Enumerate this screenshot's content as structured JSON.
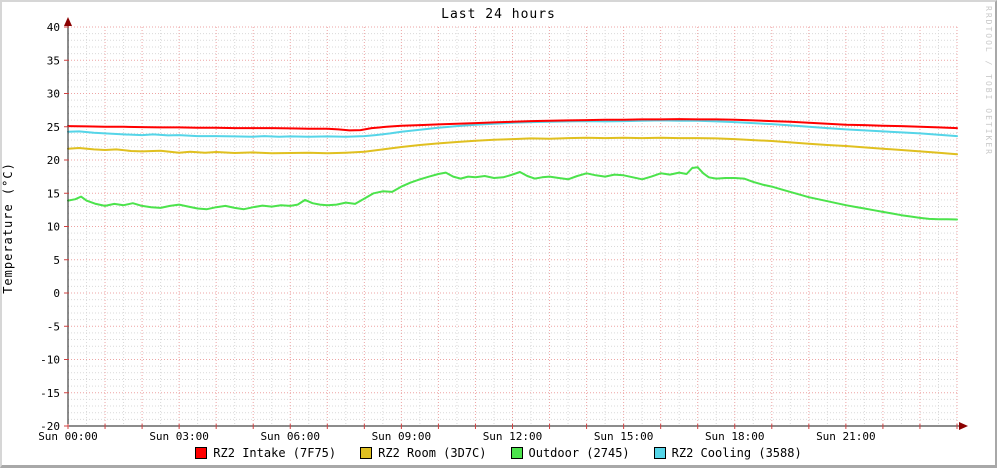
{
  "title": "Last 24 hours",
  "watermark": "RRDTOOL / TOBI OETIKER",
  "y_axis_label": "Temperature (°C)",
  "colors": {
    "grid_major": "#eda4a4",
    "grid_minor": "#d9d9d9",
    "axis": "#1a1a1a",
    "arrow": "#8b0000",
    "tick": "#d04040",
    "text": "#000000",
    "watermark": "#c9c9c9"
  },
  "chart_data": {
    "type": "line",
    "title": "Last 24 hours",
    "xlabel": "",
    "ylabel": "Temperature (°C)",
    "xlim_hours": [
      0,
      24
    ],
    "ylim": [
      -20,
      40
    ],
    "y_tick_step_major": 5,
    "y_tick_step_minor": 1,
    "x_tick_step_major_hours": 1,
    "x_tick_step_minor_hours": 0.5,
    "grid": "on",
    "legend_position": "bottom",
    "y_ticks": [
      -20,
      -15,
      -10,
      -5,
      0,
      5,
      10,
      15,
      20,
      25,
      30,
      35,
      40
    ],
    "x_ticks": [
      {
        "h": 0,
        "label": "Sun 00:00"
      },
      {
        "h": 3,
        "label": "Sun 03:00"
      },
      {
        "h": 6,
        "label": "Sun 06:00"
      },
      {
        "h": 9,
        "label": "Sun 09:00"
      },
      {
        "h": 12,
        "label": "Sun 12:00"
      },
      {
        "h": 15,
        "label": "Sun 15:00"
      },
      {
        "h": 18,
        "label": "Sun 18:00"
      },
      {
        "h": 21,
        "label": "Sun 21:00"
      }
    ],
    "series": [
      {
        "name": "RZ2 Intake (7F75)",
        "color": "#ff0000",
        "points": [
          [
            0,
            25.1
          ],
          [
            0.5,
            25.05
          ],
          [
            1,
            25.0
          ],
          [
            1.5,
            25.0
          ],
          [
            2,
            24.95
          ],
          [
            2.5,
            24.9
          ],
          [
            3,
            24.9
          ],
          [
            3.5,
            24.85
          ],
          [
            4,
            24.85
          ],
          [
            4.5,
            24.8
          ],
          [
            5,
            24.8
          ],
          [
            5.5,
            24.8
          ],
          [
            6,
            24.75
          ],
          [
            6.5,
            24.7
          ],
          [
            7,
            24.7
          ],
          [
            7.3,
            24.6
          ],
          [
            7.6,
            24.45
          ],
          [
            7.9,
            24.5
          ],
          [
            8.2,
            24.8
          ],
          [
            8.6,
            25.0
          ],
          [
            9,
            25.15
          ],
          [
            9.5,
            25.25
          ],
          [
            10,
            25.35
          ],
          [
            10.5,
            25.45
          ],
          [
            11,
            25.55
          ],
          [
            11.5,
            25.65
          ],
          [
            12,
            25.75
          ],
          [
            12.5,
            25.85
          ],
          [
            13,
            25.9
          ],
          [
            13.5,
            25.95
          ],
          [
            14,
            26.0
          ],
          [
            14.5,
            26.05
          ],
          [
            15,
            26.05
          ],
          [
            15.5,
            26.1
          ],
          [
            16,
            26.1
          ],
          [
            16.5,
            26.15
          ],
          [
            17,
            26.1
          ],
          [
            17.5,
            26.1
          ],
          [
            18,
            26.05
          ],
          [
            18.5,
            25.95
          ],
          [
            19,
            25.85
          ],
          [
            19.5,
            25.75
          ],
          [
            20,
            25.6
          ],
          [
            20.5,
            25.45
          ],
          [
            21,
            25.3
          ],
          [
            21.5,
            25.25
          ],
          [
            22,
            25.15
          ],
          [
            22.5,
            25.1
          ],
          [
            23,
            25.0
          ],
          [
            23.5,
            24.9
          ],
          [
            24,
            24.8
          ]
        ]
      },
      {
        "name": "RZ2 Room (3D7C)",
        "color": "#e0c020",
        "points": [
          [
            0,
            21.7
          ],
          [
            0.3,
            21.8
          ],
          [
            0.7,
            21.6
          ],
          [
            1,
            21.5
          ],
          [
            1.3,
            21.6
          ],
          [
            1.7,
            21.35
          ],
          [
            2,
            21.3
          ],
          [
            2.5,
            21.4
          ],
          [
            3,
            21.1
          ],
          [
            3.3,
            21.25
          ],
          [
            3.7,
            21.1
          ],
          [
            4,
            21.2
          ],
          [
            4.5,
            21.05
          ],
          [
            5,
            21.15
          ],
          [
            5.5,
            21.0
          ],
          [
            6,
            21.05
          ],
          [
            6.5,
            21.1
          ],
          [
            7,
            21.0
          ],
          [
            7.5,
            21.1
          ],
          [
            8,
            21.25
          ],
          [
            8.5,
            21.6
          ],
          [
            9,
            21.95
          ],
          [
            9.5,
            22.25
          ],
          [
            10,
            22.5
          ],
          [
            10.5,
            22.7
          ],
          [
            11,
            22.9
          ],
          [
            11.5,
            23.05
          ],
          [
            12,
            23.15
          ],
          [
            12.5,
            23.25
          ],
          [
            13,
            23.2
          ],
          [
            13.5,
            23.3
          ],
          [
            14,
            23.35
          ],
          [
            14.5,
            23.3
          ],
          [
            15,
            23.35
          ],
          [
            15.5,
            23.3
          ],
          [
            16,
            23.35
          ],
          [
            16.5,
            23.3
          ],
          [
            17,
            23.3
          ],
          [
            17.5,
            23.25
          ],
          [
            18,
            23.15
          ],
          [
            18.5,
            23.0
          ],
          [
            19,
            22.85
          ],
          [
            19.5,
            22.65
          ],
          [
            20,
            22.45
          ],
          [
            20.5,
            22.25
          ],
          [
            21,
            22.1
          ],
          [
            21.5,
            21.9
          ],
          [
            22,
            21.7
          ],
          [
            22.5,
            21.5
          ],
          [
            23,
            21.3
          ],
          [
            23.5,
            21.1
          ],
          [
            24,
            20.85
          ]
        ]
      },
      {
        "name": "Outdoor (2745)",
        "color": "#4ce34c",
        "points": [
          [
            0,
            13.9
          ],
          [
            0.2,
            14.1
          ],
          [
            0.35,
            14.5
          ],
          [
            0.5,
            13.9
          ],
          [
            0.75,
            13.4
          ],
          [
            1,
            13.1
          ],
          [
            1.25,
            13.4
          ],
          [
            1.5,
            13.2
          ],
          [
            1.75,
            13.5
          ],
          [
            2,
            13.1
          ],
          [
            2.25,
            12.9
          ],
          [
            2.5,
            12.8
          ],
          [
            2.75,
            13.1
          ],
          [
            3,
            13.3
          ],
          [
            3.25,
            13.0
          ],
          [
            3.5,
            12.7
          ],
          [
            3.75,
            12.6
          ],
          [
            4,
            12.9
          ],
          [
            4.25,
            13.1
          ],
          [
            4.5,
            12.8
          ],
          [
            4.75,
            12.6
          ],
          [
            5,
            12.9
          ],
          [
            5.25,
            13.15
          ],
          [
            5.5,
            13.0
          ],
          [
            5.75,
            13.2
          ],
          [
            6,
            13.1
          ],
          [
            6.2,
            13.3
          ],
          [
            6.4,
            14.0
          ],
          [
            6.6,
            13.5
          ],
          [
            6.8,
            13.3
          ],
          [
            7,
            13.2
          ],
          [
            7.25,
            13.3
          ],
          [
            7.5,
            13.6
          ],
          [
            7.75,
            13.4
          ],
          [
            8,
            14.2
          ],
          [
            8.25,
            15.0
          ],
          [
            8.5,
            15.3
          ],
          [
            8.75,
            15.2
          ],
          [
            9,
            16.0
          ],
          [
            9.25,
            16.6
          ],
          [
            9.5,
            17.1
          ],
          [
            9.75,
            17.5
          ],
          [
            10,
            17.9
          ],
          [
            10.2,
            18.1
          ],
          [
            10.4,
            17.5
          ],
          [
            10.6,
            17.2
          ],
          [
            10.8,
            17.5
          ],
          [
            11,
            17.4
          ],
          [
            11.25,
            17.6
          ],
          [
            11.5,
            17.3
          ],
          [
            11.75,
            17.4
          ],
          [
            12,
            17.8
          ],
          [
            12.2,
            18.2
          ],
          [
            12.4,
            17.6
          ],
          [
            12.6,
            17.2
          ],
          [
            12.8,
            17.4
          ],
          [
            13,
            17.5
          ],
          [
            13.25,
            17.3
          ],
          [
            13.5,
            17.1
          ],
          [
            13.75,
            17.6
          ],
          [
            14,
            18.0
          ],
          [
            14.25,
            17.7
          ],
          [
            14.5,
            17.5
          ],
          [
            14.75,
            17.8
          ],
          [
            15,
            17.7
          ],
          [
            15.25,
            17.4
          ],
          [
            15.5,
            17.1
          ],
          [
            15.75,
            17.5
          ],
          [
            16,
            18.0
          ],
          [
            16.25,
            17.8
          ],
          [
            16.5,
            18.1
          ],
          [
            16.7,
            17.9
          ],
          [
            16.85,
            18.8
          ],
          [
            17,
            18.9
          ],
          [
            17.15,
            18.0
          ],
          [
            17.3,
            17.4
          ],
          [
            17.5,
            17.2
          ],
          [
            17.75,
            17.3
          ],
          [
            18,
            17.3
          ],
          [
            18.25,
            17.2
          ],
          [
            18.5,
            16.7
          ],
          [
            18.75,
            16.3
          ],
          [
            19,
            16.0
          ],
          [
            19.25,
            15.6
          ],
          [
            19.5,
            15.2
          ],
          [
            19.75,
            14.8
          ],
          [
            20,
            14.4
          ],
          [
            20.25,
            14.1
          ],
          [
            20.5,
            13.8
          ],
          [
            20.75,
            13.5
          ],
          [
            21,
            13.2
          ],
          [
            21.25,
            12.95
          ],
          [
            21.5,
            12.7
          ],
          [
            21.75,
            12.45
          ],
          [
            22,
            12.2
          ],
          [
            22.25,
            11.95
          ],
          [
            22.5,
            11.7
          ],
          [
            22.75,
            11.5
          ],
          [
            23,
            11.3
          ],
          [
            23.25,
            11.15
          ],
          [
            23.5,
            11.1
          ],
          [
            23.75,
            11.1
          ],
          [
            24,
            11.05
          ]
        ]
      },
      {
        "name": "RZ2 Cooling (3588)",
        "color": "#55d5e8",
        "points": [
          [
            0,
            24.25
          ],
          [
            0.3,
            24.3
          ],
          [
            0.7,
            24.1
          ],
          [
            1,
            24.0
          ],
          [
            1.5,
            23.85
          ],
          [
            2,
            23.75
          ],
          [
            2.3,
            23.85
          ],
          [
            2.7,
            23.7
          ],
          [
            3,
            23.75
          ],
          [
            3.5,
            23.6
          ],
          [
            4,
            23.6
          ],
          [
            4.5,
            23.55
          ],
          [
            5,
            23.5
          ],
          [
            5.3,
            23.6
          ],
          [
            5.7,
            23.5
          ],
          [
            6,
            23.55
          ],
          [
            6.5,
            23.5
          ],
          [
            7,
            23.55
          ],
          [
            7.5,
            23.5
          ],
          [
            8,
            23.6
          ],
          [
            8.3,
            23.75
          ],
          [
            8.7,
            24.0
          ],
          [
            9,
            24.25
          ],
          [
            9.5,
            24.55
          ],
          [
            10,
            24.85
          ],
          [
            10.5,
            25.1
          ],
          [
            11,
            25.3
          ],
          [
            11.5,
            25.45
          ],
          [
            12,
            25.6
          ],
          [
            12.5,
            25.7
          ],
          [
            13,
            25.75
          ],
          [
            13.5,
            25.8
          ],
          [
            14,
            25.85
          ],
          [
            14.5,
            25.8
          ],
          [
            15,
            25.85
          ],
          [
            15.5,
            25.9
          ],
          [
            16,
            25.95
          ],
          [
            16.5,
            25.9
          ],
          [
            17,
            25.9
          ],
          [
            17.5,
            25.8
          ],
          [
            18,
            25.7
          ],
          [
            18.5,
            25.55
          ],
          [
            19,
            25.4
          ],
          [
            19.5,
            25.2
          ],
          [
            20,
            25.0
          ],
          [
            20.5,
            24.8
          ],
          [
            21,
            24.6
          ],
          [
            21.5,
            24.45
          ],
          [
            22,
            24.3
          ],
          [
            22.5,
            24.15
          ],
          [
            23,
            24.0
          ],
          [
            23.5,
            23.8
          ],
          [
            24,
            23.6
          ]
        ]
      }
    ],
    "legend": [
      "RZ2 Intake (7F75)",
      "RZ2 Room (3D7C)",
      "Outdoor (2745)",
      "RZ2 Cooling (3588)"
    ]
  }
}
